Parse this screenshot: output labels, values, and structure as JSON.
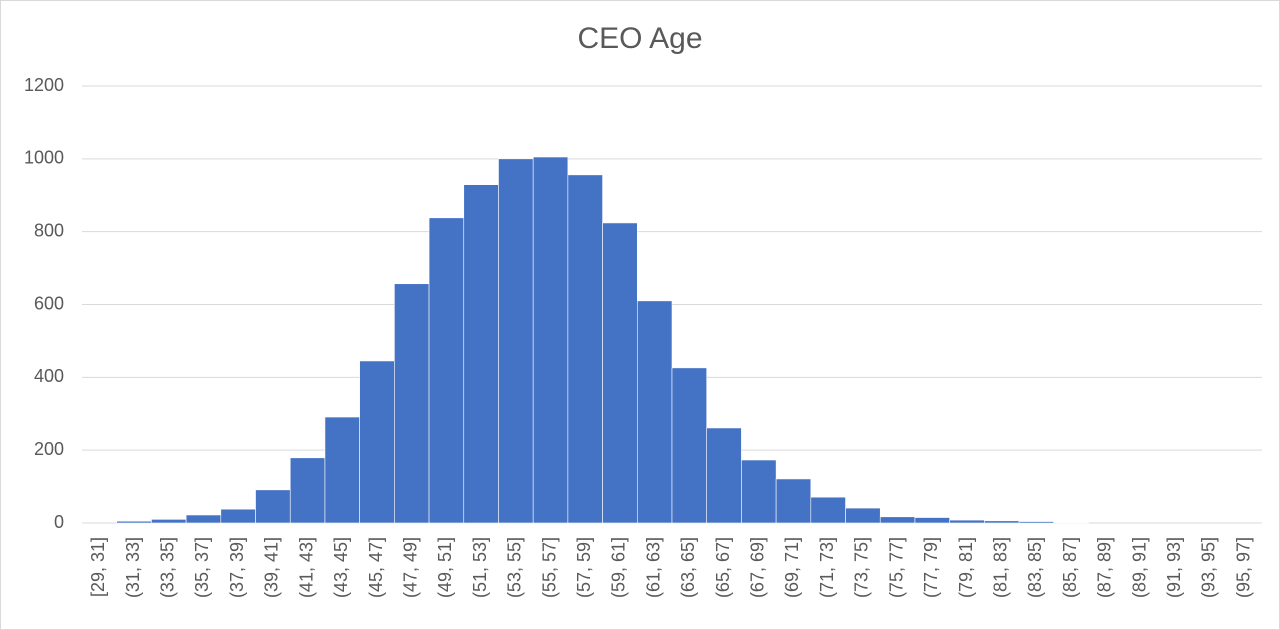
{
  "chart_data": {
    "type": "bar",
    "title": "CEO Age",
    "categories": [
      "[29, 31]",
      "(31, 33]",
      "(33, 35]",
      "(35, 37]",
      "(37, 39]",
      "(39, 41]",
      "(41, 43]",
      "(43, 45]",
      "(45, 47]",
      "(47, 49]",
      "(49, 51]",
      "(51, 53]",
      "(53, 55]",
      "(55, 57]",
      "(57, 59]",
      "(59, 61]",
      "(61, 63]",
      "(63, 65]",
      "(65, 67]",
      "(67, 69]",
      "(69, 71]",
      "(71, 73]",
      "(73, 75]",
      "(75, 77]",
      "(77, 79]",
      "(79, 81]",
      "(81, 83]",
      "(83, 85]",
      "(85, 87]",
      "(87, 89]",
      "(89, 91]",
      "(91, 93]",
      "(93, 95]",
      "(95, 97]"
    ],
    "values": [
      0,
      5,
      10,
      22,
      38,
      91,
      179,
      291,
      445,
      657,
      838,
      929,
      1000,
      1005,
      956,
      824,
      610,
      426,
      261,
      173,
      121,
      71,
      41,
      17,
      15,
      8,
      6,
      4,
      1,
      0,
      0,
      0,
      0,
      0
    ],
    "color": "#4472c4",
    "ylim": [
      0,
      1200
    ],
    "yticks": [
      0,
      200,
      400,
      600,
      800,
      1000,
      1200
    ],
    "grid": true
  }
}
